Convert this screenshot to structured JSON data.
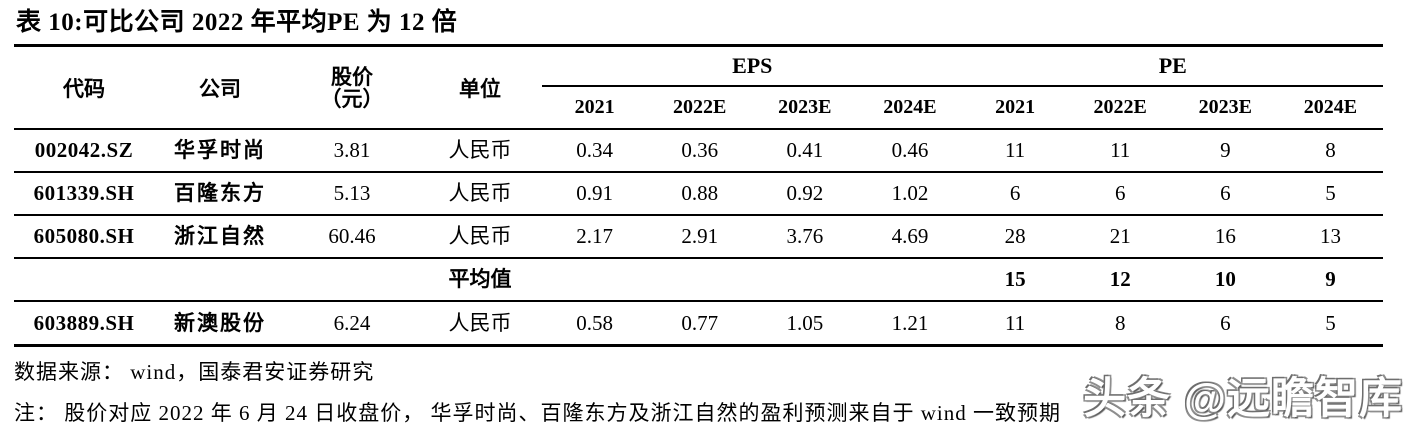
{
  "title": "表 10:可比公司 2022 年平均PE 为 12 倍",
  "table": {
    "headers": {
      "code": "代码",
      "company": "公司",
      "price_line1": "股价",
      "price_line2": "（元）",
      "unit": "单位"
    },
    "groups": {
      "eps": "EPS",
      "pe": "PE"
    },
    "years": [
      "2021",
      "2022E",
      "2023E",
      "2024E"
    ],
    "rows": [
      {
        "code": "002042.SZ",
        "company": "华孚时尚",
        "price": "3.81",
        "unit": "人民币",
        "eps": [
          "0.34",
          "0.36",
          "0.41",
          "0.46"
        ],
        "pe": [
          "11",
          "11",
          "9",
          "8"
        ]
      },
      {
        "code": "601339.SH",
        "company": "百隆东方",
        "price": "5.13",
        "unit": "人民币",
        "eps": [
          "0.91",
          "0.88",
          "0.92",
          "1.02"
        ],
        "pe": [
          "6",
          "6",
          "6",
          "5"
        ]
      },
      {
        "code": "605080.SH",
        "company": "浙江自然",
        "price": "60.46",
        "unit": "人民币",
        "eps": [
          "2.17",
          "2.91",
          "3.76",
          "4.69"
        ],
        "pe": [
          "28",
          "21",
          "16",
          "13"
        ]
      },
      {
        "code": "603889.SH",
        "company": "新澳股份",
        "price": "6.24",
        "unit": "人民币",
        "eps": [
          "0.58",
          "0.77",
          "1.05",
          "1.21"
        ],
        "pe": [
          "11",
          "8",
          "6",
          "5"
        ]
      }
    ],
    "average_row": {
      "label": "平均值",
      "pe": [
        "15",
        "12",
        "10",
        "9"
      ]
    }
  },
  "footer": {
    "source": "数据来源： wind，国泰君安证券研究",
    "note": "注： 股价对应 2022 年 6 月 24 日收盘价， 华孚时尚、百隆东方及浙江自然的盈利预测来自于 wind 一致预期"
  },
  "watermark": "头条 @远瞻智库"
}
